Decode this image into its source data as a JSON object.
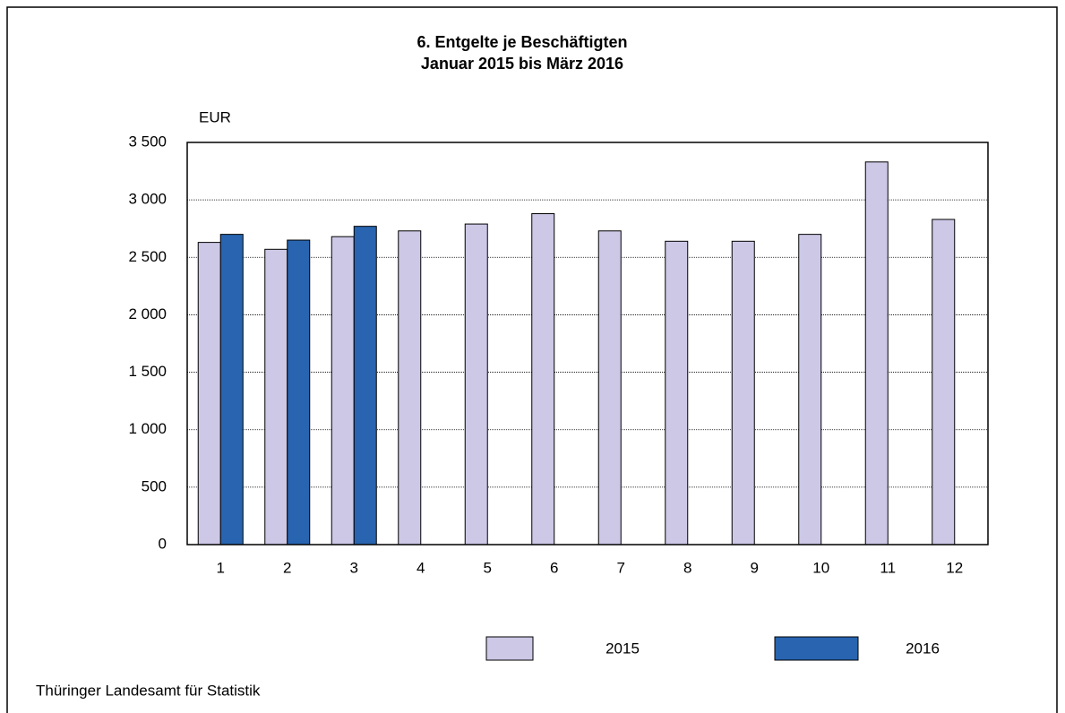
{
  "chart_data": {
    "type": "bar",
    "title": "6. Entgelte je Beschäftigten",
    "subtitle": "Januar 2015 bis März 2016",
    "y_label": "EUR",
    "source": "Thüringer Landesamt für Statistik",
    "categories": [
      "1",
      "2",
      "3",
      "4",
      "5",
      "6",
      "7",
      "8",
      "9",
      "10",
      "11",
      "12"
    ],
    "series": [
      {
        "name": "2015",
        "color": "#ccc8e6",
        "values": [
          2630,
          2570,
          2680,
          2730,
          2790,
          2880,
          2730,
          2640,
          2640,
          2700,
          3330,
          2830
        ]
      },
      {
        "name": "2016",
        "color": "#2864b0",
        "values": [
          2700,
          2650,
          2770,
          null,
          null,
          null,
          null,
          null,
          null,
          null,
          null,
          null
        ]
      }
    ],
    "ylim": [
      0,
      3500
    ],
    "yticks": [
      0,
      500,
      {
        "value": 1000,
        "label": "1 000"
      },
      {
        "value": 1500,
        "label": "1 500"
      },
      {
        "value": 2000,
        "label": "2 000"
      },
      {
        "value": 2500,
        "label": "2 500"
      },
      {
        "value": 3000,
        "label": "3 000"
      },
      {
        "value": 3500,
        "label": "3 500"
      }
    ],
    "grid": true
  }
}
